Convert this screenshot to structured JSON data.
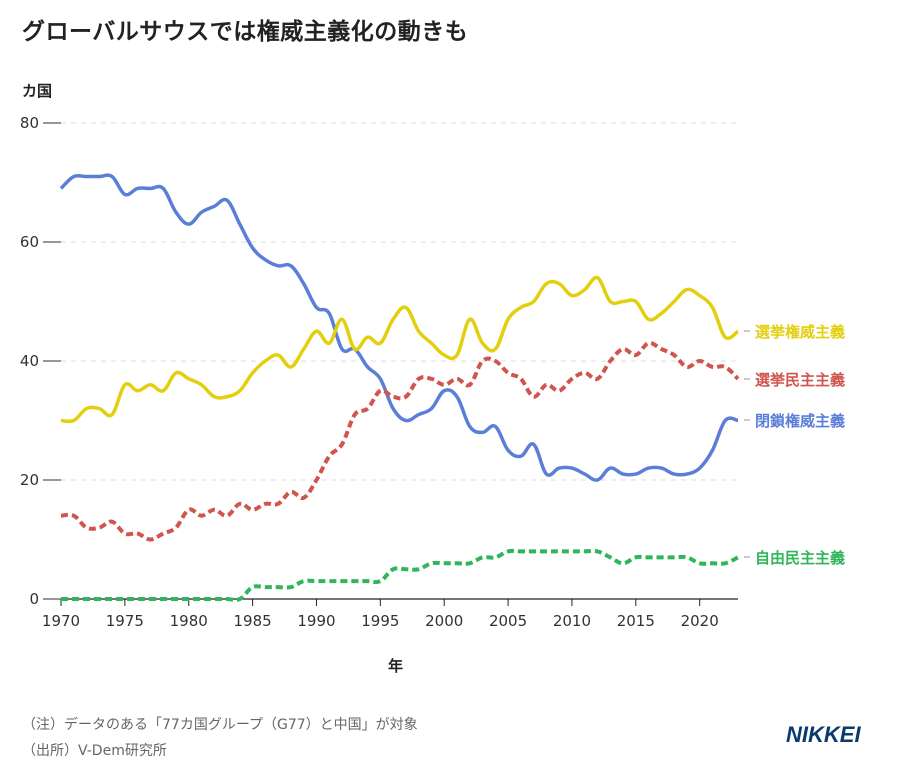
{
  "header": {
    "title": "グローバルサウスでは権威主義化の動きも",
    "unit_label": "カ国"
  },
  "footer": {
    "note": "（注）データのある「77カ国グループ（G77）と中国」が対象",
    "source": "（出所）V-Dem研究所",
    "logo": "NIKKEI"
  },
  "chart_data": {
    "type": "line",
    "title": "グローバルサウスでは権威主義化の動きも",
    "xlabel": "年",
    "ylabel": "カ国",
    "xlim": [
      1970,
      2023
    ],
    "ylim": [
      0,
      80
    ],
    "x_ticks": [
      1970,
      1975,
      1980,
      1985,
      1990,
      1995,
      2000,
      2005,
      2010,
      2015,
      2020
    ],
    "y_ticks": [
      0,
      20,
      40,
      60,
      80
    ],
    "grid": "horizontal-dashed",
    "legend": "inline-right",
    "x_start": 1970,
    "series": [
      {
        "name": "選挙権威主義",
        "color": "#e3cf0e",
        "style": "solid",
        "values": [
          30,
          30,
          32,
          32,
          31,
          36,
          35,
          36,
          35,
          38,
          37,
          36,
          34,
          34,
          35,
          38,
          40,
          41,
          39,
          42,
          45,
          43,
          47,
          42,
          44,
          43,
          47,
          49,
          45,
          43,
          41,
          41,
          47,
          43,
          42,
          47,
          49,
          50,
          53,
          53,
          51,
          52,
          54,
          50,
          50,
          50,
          47,
          48,
          50,
          52,
          51,
          49,
          44,
          45
        ]
      },
      {
        "name": "選挙民主主義",
        "color": "#d0554e",
        "style": "dashed",
        "values": [
          14,
          14,
          12,
          12,
          13,
          11,
          11,
          10,
          11,
          12,
          15,
          14,
          15,
          14,
          16,
          15,
          16,
          16,
          18,
          17,
          20,
          24,
          26,
          31,
          32,
          35,
          34,
          34,
          37,
          37,
          36,
          37,
          36,
          40,
          40,
          38,
          37,
          34,
          36,
          35,
          37,
          38,
          37,
          40,
          42,
          41,
          43,
          42,
          41,
          39,
          40,
          39,
          39,
          37
        ]
      },
      {
        "name": "閉鎖権威主義",
        "color": "#5b7fd8",
        "style": "solid",
        "values": [
          69,
          71,
          71,
          71,
          71,
          68,
          69,
          69,
          69,
          65,
          63,
          65,
          66,
          67,
          63,
          59,
          57,
          56,
          56,
          53,
          49,
          48,
          42,
          42,
          39,
          37,
          32,
          30,
          31,
          32,
          35,
          34,
          29,
          28,
          29,
          25,
          24,
          26,
          21,
          22,
          22,
          21,
          20,
          22,
          21,
          21,
          22,
          22,
          21,
          21,
          22,
          25,
          30,
          30
        ]
      },
      {
        "name": "自由民主主義",
        "color": "#2fb55a",
        "style": "dashed",
        "values": [
          0,
          0,
          0,
          0,
          0,
          0,
          0,
          0,
          0,
          0,
          0,
          0,
          0,
          0,
          0,
          2,
          2,
          2,
          2,
          3,
          3,
          3,
          3,
          3,
          3,
          3,
          5,
          5,
          5,
          6,
          6,
          6,
          6,
          7,
          7,
          8,
          8,
          8,
          8,
          8,
          8,
          8,
          8,
          7,
          6,
          7,
          7,
          7,
          7,
          7,
          6,
          6,
          6,
          7
        ]
      }
    ]
  }
}
